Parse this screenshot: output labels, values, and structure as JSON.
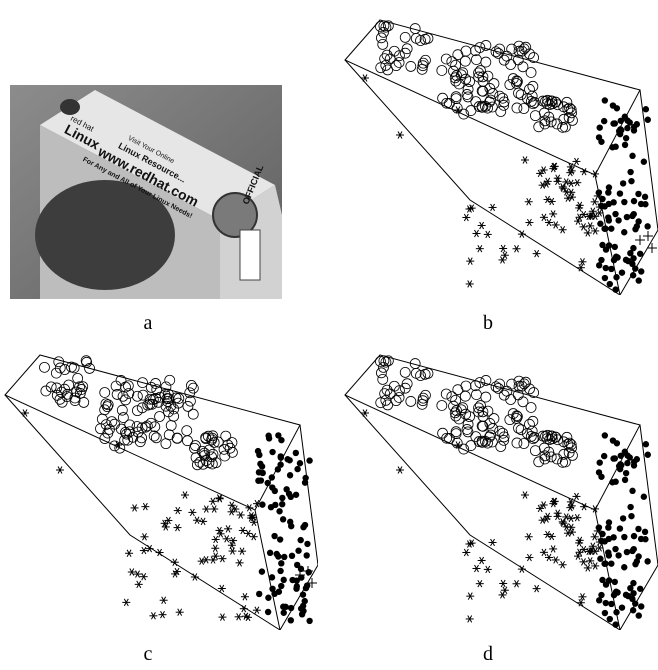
{
  "captions": {
    "a": "a",
    "b": "b",
    "c": "c",
    "d": "d"
  },
  "photo": {
    "lines": [
      "Visit Your Online",
      "Linux Resource...",
      "www.redhat.com",
      "For Any and All of Your Linux Needs!"
    ],
    "brand": "Linux",
    "subbrand": "red hat",
    "side": "OFFICIAL"
  },
  "colors": {
    "ink": "#000000",
    "photo_light": "#d8d8d8",
    "photo_mid": "#9a9a9a",
    "photo_dark": "#3a3a3a"
  }
}
